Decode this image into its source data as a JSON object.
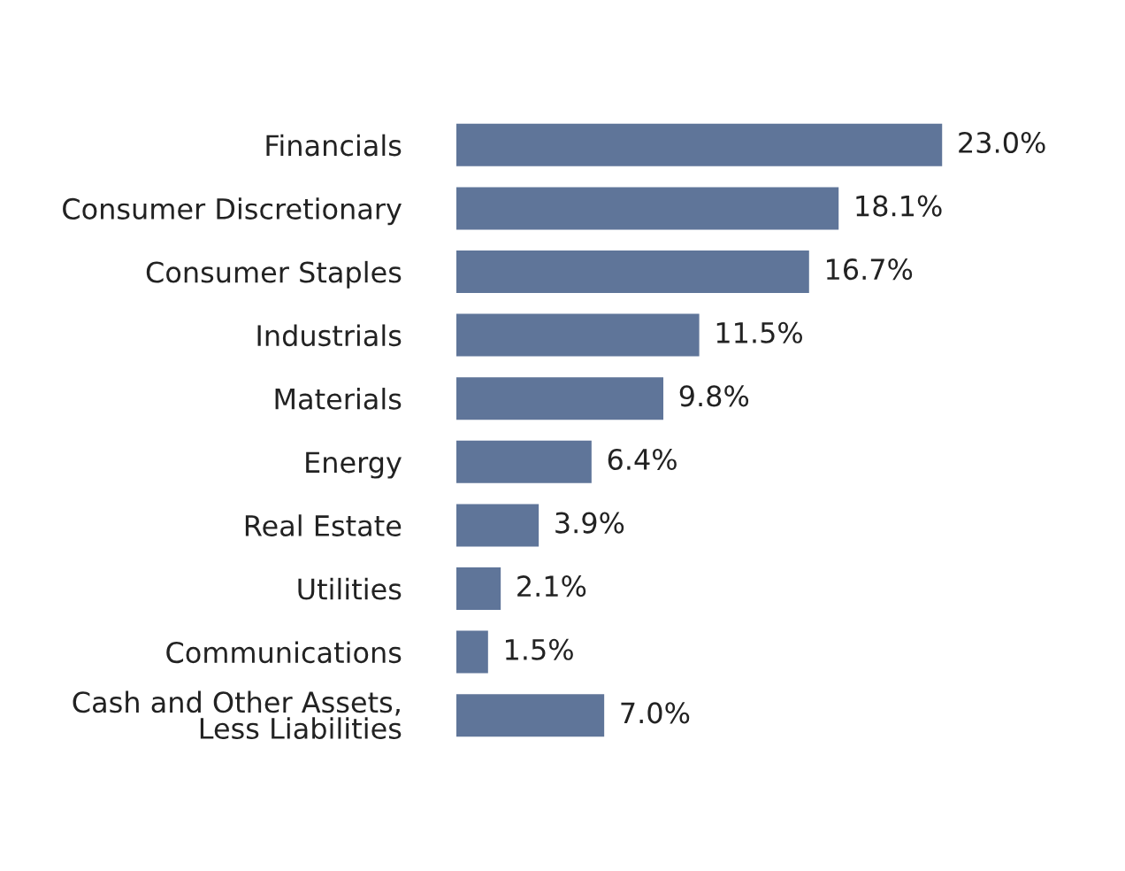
{
  "chart_data": {
    "type": "bar",
    "orientation": "horizontal",
    "categories": [
      "Financials",
      "Consumer Discretionary",
      "Consumer Staples",
      "Industrials",
      "Materials",
      "Energy",
      "Real Estate",
      "Utilities",
      "Communications",
      "Cash and Other Assets,\nLess Liabilities"
    ],
    "values": [
      23.0,
      18.1,
      16.7,
      11.5,
      9.8,
      6.4,
      3.9,
      2.1,
      1.5,
      7.0
    ],
    "value_labels": [
      "23.0%",
      "18.1%",
      "16.7%",
      "11.5%",
      "9.8%",
      "6.4%",
      "3.9%",
      "2.1%",
      "1.5%",
      "7.0%"
    ],
    "color": "#5f7599",
    "tick_labels": "y",
    "grid": false,
    "legend": false
  }
}
